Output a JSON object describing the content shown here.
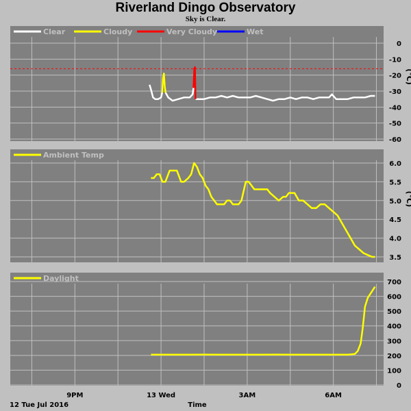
{
  "title": "Riverland Dingo Observatory",
  "subtitle": "Sky is Clear.",
  "date_label": "12 Tue Jul 2016",
  "x_axis_label": "Time",
  "x_ticks": [
    {
      "label": "9PM",
      "hour": 21
    },
    {
      "label": "13 Wed",
      "hour": 24
    },
    {
      "label": "3AM",
      "hour": 27
    },
    {
      "label": "6AM",
      "hour": 30
    }
  ],
  "colors": {
    "background": "#c0c0c0",
    "panel": "#808080",
    "grid": "#c0c0c0"
  },
  "chart_data": [
    {
      "type": "line",
      "unit": "(°C)",
      "ylim": [
        -60,
        5
      ],
      "yticks": [
        0,
        -10,
        -20,
        -30,
        -40,
        -50,
        -60
      ],
      "threshold": {
        "value": -16,
        "color": "#ff0000"
      },
      "legend": [
        {
          "label": "Clear",
          "color": "#ffffff"
        },
        {
          "label": "Cloudy",
          "color": "#ffff00"
        },
        {
          "label": "Very Cloudy",
          "color": "#ff0000"
        },
        {
          "label": "Wet",
          "color": "#0000ff"
        }
      ],
      "series": [
        {
          "name": "Clear",
          "color": "#ffffff",
          "segments": [
            {
              "x": [
                23.6,
                23.65,
                23.72,
                23.8,
                23.9,
                24.0,
                24.04
              ],
              "y": [
                -26,
                -29,
                -34,
                -35,
                -35,
                -34,
                -31
              ]
            },
            {
              "x": [
                24.16,
                24.25,
                24.4,
                24.6,
                24.8,
                25.0,
                25.1,
                25.13
              ],
              "y": [
                -31,
                -34,
                -36,
                -35,
                -34,
                -34,
                -32,
                -28
              ]
            },
            {
              "x": [
                25.2,
                25.3,
                25.5,
                25.7,
                25.9,
                26.1,
                26.3,
                26.5,
                26.7,
                26.9,
                27.1,
                27.3,
                27.5,
                27.7,
                27.9,
                28.1,
                28.3,
                28.5,
                28.7,
                28.9,
                29.1,
                29.3,
                29.5,
                29.7,
                29.85,
                29.95,
                30.1,
                30.3,
                30.5,
                30.7,
                30.9,
                31.1,
                31.3,
                31.45
              ],
              "y": [
                -35,
                -35,
                -35,
                -34,
                -34,
                -33,
                -34,
                -33,
                -34,
                -34,
                -34,
                -33,
                -34,
                -35,
                -36,
                -35,
                -35,
                -34,
                -35,
                -34,
                -34,
                -35,
                -34,
                -34,
                -34,
                -32,
                -35,
                -35,
                -35,
                -34,
                -34,
                -34,
                -33,
                -33
              ]
            }
          ]
        },
        {
          "name": "Cloudy",
          "color": "#ffff00",
          "segments": [
            {
              "x": [
                24.04,
                24.07,
                24.1,
                24.13,
                24.16
              ],
              "y": [
                -31,
                -22,
                -19,
                -27,
                -31
              ]
            }
          ]
        },
        {
          "name": "Very Cloudy",
          "color": "#ff0000",
          "segments": [
            {
              "x": [
                25.13,
                25.16,
                25.18,
                25.2
              ],
              "y": [
                -28,
                -16,
                -15,
                -35
              ]
            }
          ]
        },
        {
          "name": "Wet",
          "color": "#0000ff",
          "segments": []
        }
      ]
    },
    {
      "type": "line",
      "unit": "(°C)",
      "ylim": [
        3.4,
        6.2
      ],
      "yticks": [
        6.0,
        5.5,
        5.0,
        4.5,
        4.0,
        3.5
      ],
      "legend": [
        {
          "label": "Ambient Temp",
          "color": "#ffff00"
        }
      ],
      "series": [
        {
          "name": "Ambient Temp",
          "color": "#ffff00",
          "segments": [
            {
              "x": [
                23.65,
                23.75,
                23.85,
                23.95,
                24.05,
                24.15,
                24.3,
                24.4,
                24.55,
                24.7,
                24.8,
                24.95,
                25.05,
                25.15,
                25.25,
                25.35,
                25.45,
                25.55,
                25.65,
                25.75,
                25.85,
                25.95,
                26.1,
                26.2,
                26.3,
                26.4,
                26.5,
                26.6,
                26.7,
                26.8,
                26.95,
                27.05,
                27.15,
                27.25,
                27.35,
                27.45,
                27.55,
                27.7,
                27.8,
                27.95,
                28.1,
                28.25,
                28.35,
                28.45,
                28.55,
                28.65,
                28.8,
                28.95,
                29.1,
                29.25,
                29.4,
                29.55,
                29.7,
                29.85,
                30.0,
                30.15,
                30.3,
                30.45,
                30.6,
                30.75,
                30.9,
                31.05,
                31.2,
                31.35,
                31.45
              ],
              "y": [
                5.6,
                5.6,
                5.7,
                5.7,
                5.5,
                5.5,
                5.8,
                5.8,
                5.8,
                5.5,
                5.5,
                5.6,
                5.7,
                6.0,
                5.9,
                5.7,
                5.6,
                5.4,
                5.3,
                5.1,
                5.0,
                4.9,
                4.9,
                4.9,
                5.0,
                5.0,
                4.9,
                4.9,
                4.9,
                5.0,
                5.5,
                5.5,
                5.4,
                5.3,
                5.3,
                5.3,
                5.3,
                5.3,
                5.2,
                5.1,
                5.0,
                5.1,
                5.1,
                5.2,
                5.2,
                5.2,
                5.0,
                5.0,
                4.9,
                4.8,
                4.8,
                4.9,
                4.9,
                4.8,
                4.7,
                4.6,
                4.4,
                4.2,
                4.0,
                3.8,
                3.7,
                3.6,
                3.55,
                3.5,
                3.5
              ]
            }
          ]
        }
      ]
    },
    {
      "type": "line",
      "unit": "",
      "ylim": [
        0,
        700
      ],
      "yticks": [
        700,
        600,
        500,
        400,
        300,
        200,
        100,
        0
      ],
      "legend": [
        {
          "label": "Daylight",
          "color": "#ffff00"
        }
      ],
      "series": [
        {
          "name": "Daylight",
          "color": "#ffff00",
          "segments": [
            {
              "x": [
                23.65,
                24.0,
                24.5,
                25.0,
                25.5,
                26.0,
                26.5,
                27.0,
                27.5,
                28.0,
                28.5,
                29.0,
                29.5,
                30.0,
                30.5,
                30.75,
                30.85,
                30.95,
                31.02,
                31.1,
                31.2,
                31.3,
                31.4,
                31.45
              ],
              "y": [
                205,
                205,
                205,
                205,
                206,
                205,
                205,
                205,
                205,
                206,
                205,
                205,
                205,
                205,
                205,
                210,
                230,
                280,
                380,
                530,
                590,
                620,
                650,
                665
              ]
            }
          ]
        }
      ]
    }
  ]
}
